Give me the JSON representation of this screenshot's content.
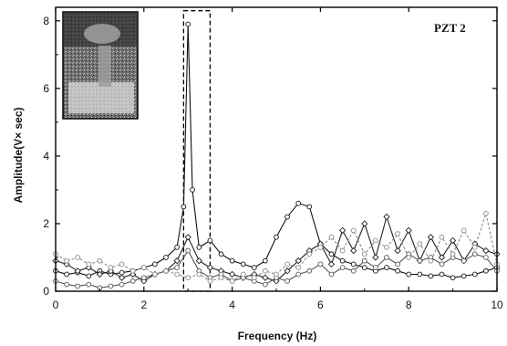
{
  "chart_data": {
    "type": "line",
    "title": "",
    "panel_label": "PZT 2",
    "xlabel": "Frequency (Hz)",
    "ylabel": "Amplitude(V× sec)",
    "xlim": [
      0,
      10
    ],
    "ylim": [
      0,
      8.4
    ],
    "xticks": [
      0,
      2,
      4,
      6,
      8,
      10
    ],
    "yticks": [
      0,
      2,
      4,
      6,
      8
    ],
    "grid": false,
    "legend": "none",
    "inset_photo": true,
    "series": [
      {
        "color": "#111111",
        "marker": "circle",
        "style": "solid",
        "x": [
          0,
          0.25,
          0.5,
          0.75,
          1.0,
          1.25,
          1.5,
          1.75,
          2.0,
          2.25,
          2.5,
          2.75,
          2.9,
          3.0,
          3.1,
          3.25,
          3.5,
          3.75,
          4.0,
          4.25,
          4.5,
          4.75,
          5.0,
          5.25,
          5.5,
          5.75,
          6.0,
          6.25,
          6.5,
          6.75,
          7.0,
          7.25,
          7.5,
          7.75,
          8.0,
          8.25,
          8.5,
          8.75,
          9.0,
          9.25,
          9.5,
          9.75,
          10.0
        ],
        "y": [
          0.6,
          0.5,
          0.55,
          0.45,
          0.6,
          0.5,
          0.55,
          0.6,
          0.7,
          0.8,
          1.0,
          1.3,
          2.5,
          7.9,
          3.0,
          1.3,
          1.5,
          1.1,
          0.9,
          0.8,
          0.7,
          0.9,
          1.6,
          2.2,
          2.6,
          2.5,
          1.4,
          1.1,
          0.9,
          0.8,
          0.7,
          0.6,
          0.7,
          0.6,
          0.5,
          0.5,
          0.45,
          0.5,
          0.4,
          0.45,
          0.5,
          0.6,
          0.7
        ]
      },
      {
        "color": "#222222",
        "marker": "diamond",
        "style": "solid",
        "x": [
          0,
          0.25,
          0.5,
          0.75,
          1.0,
          1.25,
          1.5,
          1.75,
          2.0,
          2.25,
          2.5,
          2.75,
          3.0,
          3.25,
          3.5,
          3.75,
          4.0,
          4.25,
          4.5,
          4.75,
          5.0,
          5.25,
          5.5,
          5.75,
          6.0,
          6.25,
          6.5,
          6.75,
          7.0,
          7.25,
          7.5,
          7.75,
          8.0,
          8.25,
          8.5,
          8.75,
          9.0,
          9.25,
          9.5,
          9.75,
          10.0
        ],
        "y": [
          0.9,
          0.8,
          0.6,
          0.7,
          0.5,
          0.6,
          0.4,
          0.5,
          0.3,
          0.5,
          0.6,
          0.9,
          1.6,
          0.9,
          0.7,
          0.6,
          0.5,
          0.4,
          0.5,
          0.4,
          0.3,
          0.6,
          0.9,
          1.2,
          1.4,
          0.8,
          1.8,
          1.2,
          2.0,
          1.0,
          2.2,
          1.2,
          1.8,
          0.9,
          1.6,
          1.0,
          1.5,
          0.9,
          1.4,
          1.2,
          1.1
        ]
      },
      {
        "color": "#555555",
        "marker": "circle",
        "style": "solid",
        "x": [
          0,
          0.25,
          0.5,
          0.75,
          1.0,
          1.25,
          1.5,
          1.75,
          2.0,
          2.25,
          2.5,
          2.75,
          3.0,
          3.25,
          3.5,
          3.75,
          4.0,
          4.25,
          4.5,
          4.75,
          5.0,
          5.25,
          5.5,
          5.75,
          6.0,
          6.25,
          6.5,
          6.75,
          7.0,
          7.25,
          7.5,
          7.75,
          8.0,
          8.25,
          8.5,
          8.75,
          9.0,
          9.25,
          9.5,
          9.75,
          10.0
        ],
        "y": [
          0.3,
          0.2,
          0.15,
          0.2,
          0.1,
          0.15,
          0.2,
          0.3,
          0.4,
          0.5,
          0.6,
          0.7,
          1.2,
          0.6,
          0.4,
          0.5,
          0.3,
          0.4,
          0.3,
          0.2,
          0.4,
          0.3,
          0.5,
          0.6,
          0.8,
          0.5,
          0.7,
          0.6,
          0.9,
          0.7,
          1.0,
          0.8,
          1.1,
          0.9,
          1.0,
          0.8,
          1.0,
          0.9,
          1.1,
          1.0,
          0.6
        ]
      },
      {
        "color": "#8a8a8a",
        "marker": "circle",
        "style": "dashed",
        "x": [
          0,
          0.25,
          0.5,
          0.75,
          1.0,
          1.25,
          1.5,
          1.75,
          2.0,
          2.25,
          2.5,
          2.75,
          3.0,
          3.25,
          3.5,
          3.75,
          4.0,
          4.25,
          4.5,
          4.75,
          5.0,
          5.25,
          5.5,
          5.75,
          6.0,
          6.25,
          6.5,
          6.75,
          7.0,
          7.25,
          7.5,
          7.75,
          8.0,
          8.25,
          8.5,
          8.75,
          9.0,
          9.25,
          9.5,
          9.75,
          10.0
        ],
        "y": [
          1.1,
          0.9,
          1.0,
          0.8,
          0.9,
          0.7,
          0.8,
          0.6,
          0.7,
          0.5,
          0.6,
          0.5,
          0.4,
          0.5,
          0.3,
          0.4,
          0.3,
          0.5,
          0.4,
          0.6,
          0.5,
          0.8,
          0.7,
          1.1,
          1.3,
          1.6,
          1.2,
          1.8,
          1.1,
          1.5,
          1.3,
          1.7,
          1.0,
          1.4,
          0.9,
          1.6,
          1.1,
          1.8,
          1.3,
          2.3,
          0.8
        ]
      }
    ],
    "annotation_rect": {
      "x0": 2.9,
      "x1": 3.5,
      "y0": 0,
      "y1": 8.3,
      "style": "dashed"
    }
  }
}
